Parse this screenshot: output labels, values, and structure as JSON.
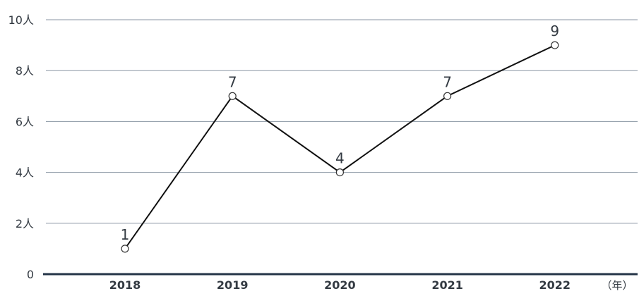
{
  "chart_data": {
    "type": "line",
    "categories": [
      "2018",
      "2019",
      "2020",
      "2021",
      "2022"
    ],
    "series": [
      {
        "values": [
          1,
          7,
          4,
          7,
          9
        ]
      }
    ],
    "data_labels": [
      "1",
      "7",
      "4",
      "7",
      "9"
    ],
    "y_ticks": [
      {
        "value": 0,
        "label": "0"
      },
      {
        "value": 2,
        "label": "2人"
      },
      {
        "value": 4,
        "label": "4人"
      },
      {
        "value": 6,
        "label": "6人"
      },
      {
        "value": 8,
        "label": "8人"
      },
      {
        "value": 10,
        "label": "10人"
      }
    ],
    "x_unit_label": "（年）",
    "ylim": [
      0,
      10
    ],
    "grid": true,
    "legend": "none",
    "colors": {
      "line": "#111111",
      "grid": "#8a96a3",
      "baseline": "#243447",
      "text": "#333a42"
    }
  }
}
